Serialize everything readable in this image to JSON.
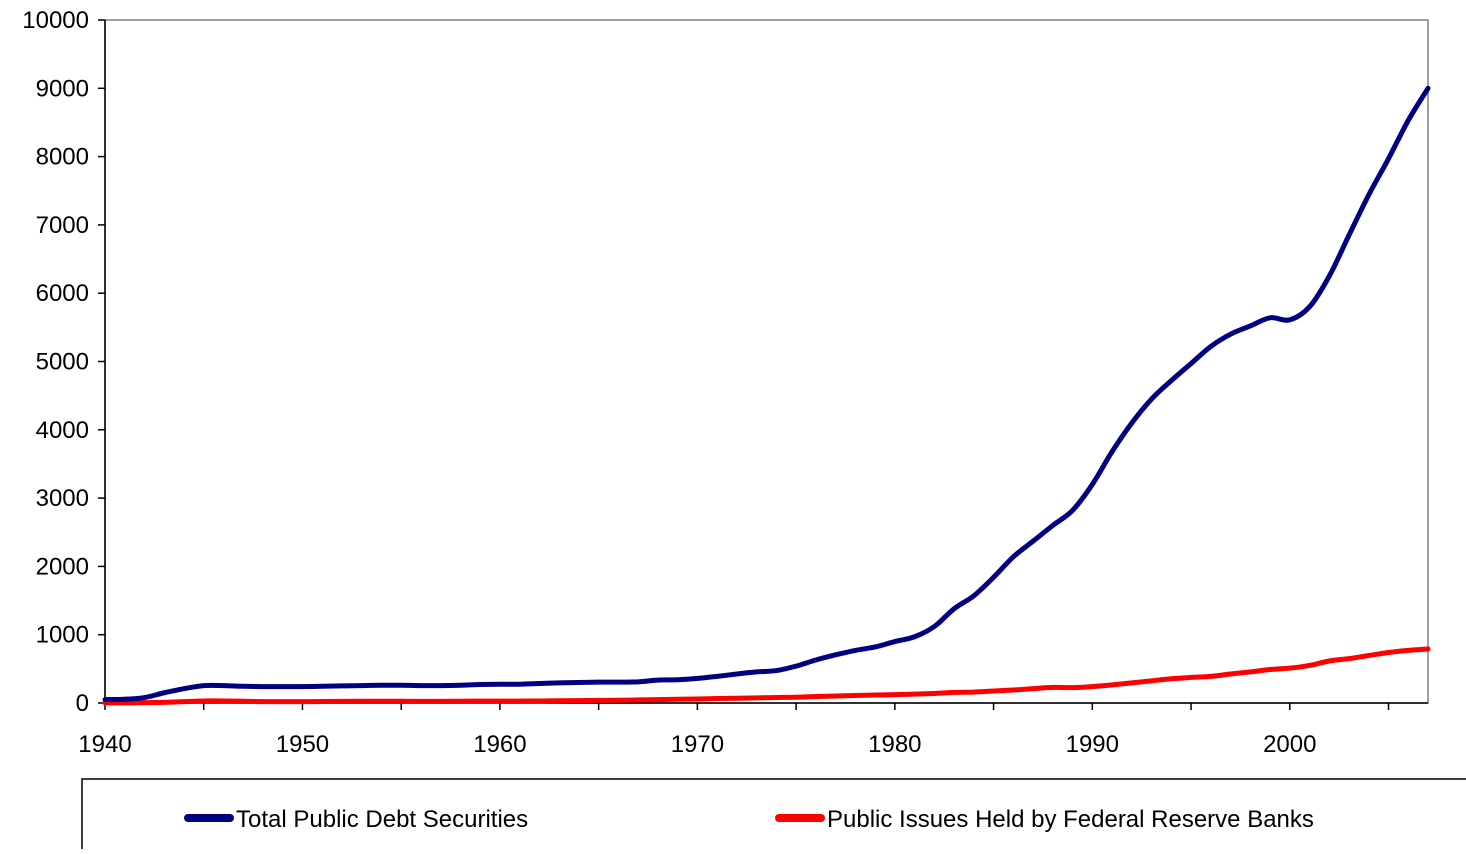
{
  "chart_data": {
    "type": "line",
    "title": "",
    "xlabel": "",
    "ylabel": "",
    "xlim": [
      1940,
      2007
    ],
    "ylim": [
      0,
      10000
    ],
    "x_ticks": [
      1940,
      1950,
      1960,
      1970,
      1980,
      1990,
      2000
    ],
    "y_ticks": [
      0,
      1000,
      2000,
      3000,
      4000,
      5000,
      6000,
      7000,
      8000,
      9000,
      10000
    ],
    "grid": false,
    "legend_position": "bottom",
    "series": [
      {
        "name": "Total Public Debt Securities",
        "color": "#000080",
        "points": [
          [
            1940,
            50
          ],
          [
            1941,
            55
          ],
          [
            1942,
            80
          ],
          [
            1943,
            150
          ],
          [
            1944,
            210
          ],
          [
            1945,
            255
          ],
          [
            1946,
            255
          ],
          [
            1947,
            245
          ],
          [
            1948,
            240
          ],
          [
            1949,
            240
          ],
          [
            1950,
            240
          ],
          [
            1951,
            245
          ],
          [
            1952,
            250
          ],
          [
            1953,
            255
          ],
          [
            1954,
            260
          ],
          [
            1955,
            260
          ],
          [
            1956,
            255
          ],
          [
            1957,
            255
          ],
          [
            1958,
            260
          ],
          [
            1959,
            270
          ],
          [
            1960,
            275
          ],
          [
            1961,
            275
          ],
          [
            1962,
            285
          ],
          [
            1963,
            295
          ],
          [
            1964,
            300
          ],
          [
            1965,
            305
          ],
          [
            1966,
            305
          ],
          [
            1967,
            310
          ],
          [
            1968,
            335
          ],
          [
            1969,
            340
          ],
          [
            1970,
            360
          ],
          [
            1971,
            390
          ],
          [
            1972,
            425
          ],
          [
            1973,
            455
          ],
          [
            1974,
            475
          ],
          [
            1975,
            540
          ],
          [
            1976,
            630
          ],
          [
            1977,
            705
          ],
          [
            1978,
            770
          ],
          [
            1979,
            820
          ],
          [
            1980,
            900
          ],
          [
            1981,
            970
          ],
          [
            1982,
            1120
          ],
          [
            1983,
            1380
          ],
          [
            1984,
            1570
          ],
          [
            1985,
            1840
          ],
          [
            1986,
            2140
          ],
          [
            1987,
            2370
          ],
          [
            1988,
            2600
          ],
          [
            1989,
            2820
          ],
          [
            1990,
            3200
          ],
          [
            1991,
            3680
          ],
          [
            1992,
            4100
          ],
          [
            1993,
            4450
          ],
          [
            1994,
            4720
          ],
          [
            1995,
            4970
          ],
          [
            1996,
            5220
          ],
          [
            1997,
            5400
          ],
          [
            1998,
            5520
          ],
          [
            1999,
            5640
          ],
          [
            2000,
            5610
          ],
          [
            2001,
            5800
          ],
          [
            2002,
            6250
          ],
          [
            2003,
            6850
          ],
          [
            2004,
            7440
          ],
          [
            2005,
            7970
          ],
          [
            2006,
            8530
          ],
          [
            2007,
            9000
          ]
        ]
      },
      {
        "name": "Public Issues Held by Federal Reserve Banks",
        "color": "#ff0000",
        "points": [
          [
            1940,
            2
          ],
          [
            1941,
            2
          ],
          [
            1942,
            5
          ],
          [
            1943,
            10
          ],
          [
            1944,
            20
          ],
          [
            1945,
            30
          ],
          [
            1946,
            30
          ],
          [
            1947,
            25
          ],
          [
            1948,
            20
          ],
          [
            1949,
            20
          ],
          [
            1950,
            20
          ],
          [
            1951,
            22
          ],
          [
            1952,
            24
          ],
          [
            1953,
            25
          ],
          [
            1954,
            25
          ],
          [
            1955,
            25
          ],
          [
            1956,
            24
          ],
          [
            1957,
            24
          ],
          [
            1958,
            26
          ],
          [
            1959,
            27
          ],
          [
            1960,
            27
          ],
          [
            1961,
            28
          ],
          [
            1962,
            30
          ],
          [
            1963,
            32
          ],
          [
            1964,
            35
          ],
          [
            1965,
            38
          ],
          [
            1966,
            40
          ],
          [
            1967,
            45
          ],
          [
            1968,
            50
          ],
          [
            1969,
            55
          ],
          [
            1970,
            58
          ],
          [
            1971,
            65
          ],
          [
            1972,
            70
          ],
          [
            1973,
            75
          ],
          [
            1974,
            80
          ],
          [
            1975,
            85
          ],
          [
            1976,
            95
          ],
          [
            1977,
            102
          ],
          [
            1978,
            110
          ],
          [
            1979,
            118
          ],
          [
            1980,
            122
          ],
          [
            1981,
            130
          ],
          [
            1982,
            140
          ],
          [
            1983,
            155
          ],
          [
            1984,
            160
          ],
          [
            1985,
            175
          ],
          [
            1986,
            190
          ],
          [
            1987,
            210
          ],
          [
            1988,
            228
          ],
          [
            1989,
            225
          ],
          [
            1990,
            240
          ],
          [
            1991,
            265
          ],
          [
            1992,
            295
          ],
          [
            1993,
            325
          ],
          [
            1994,
            355
          ],
          [
            1995,
            375
          ],
          [
            1996,
            390
          ],
          [
            1997,
            425
          ],
          [
            1998,
            455
          ],
          [
            1999,
            490
          ],
          [
            2000,
            510
          ],
          [
            2001,
            550
          ],
          [
            2002,
            615
          ],
          [
            2003,
            650
          ],
          [
            2004,
            695
          ],
          [
            2005,
            740
          ],
          [
            2006,
            770
          ],
          [
            2007,
            790
          ]
        ]
      }
    ]
  }
}
